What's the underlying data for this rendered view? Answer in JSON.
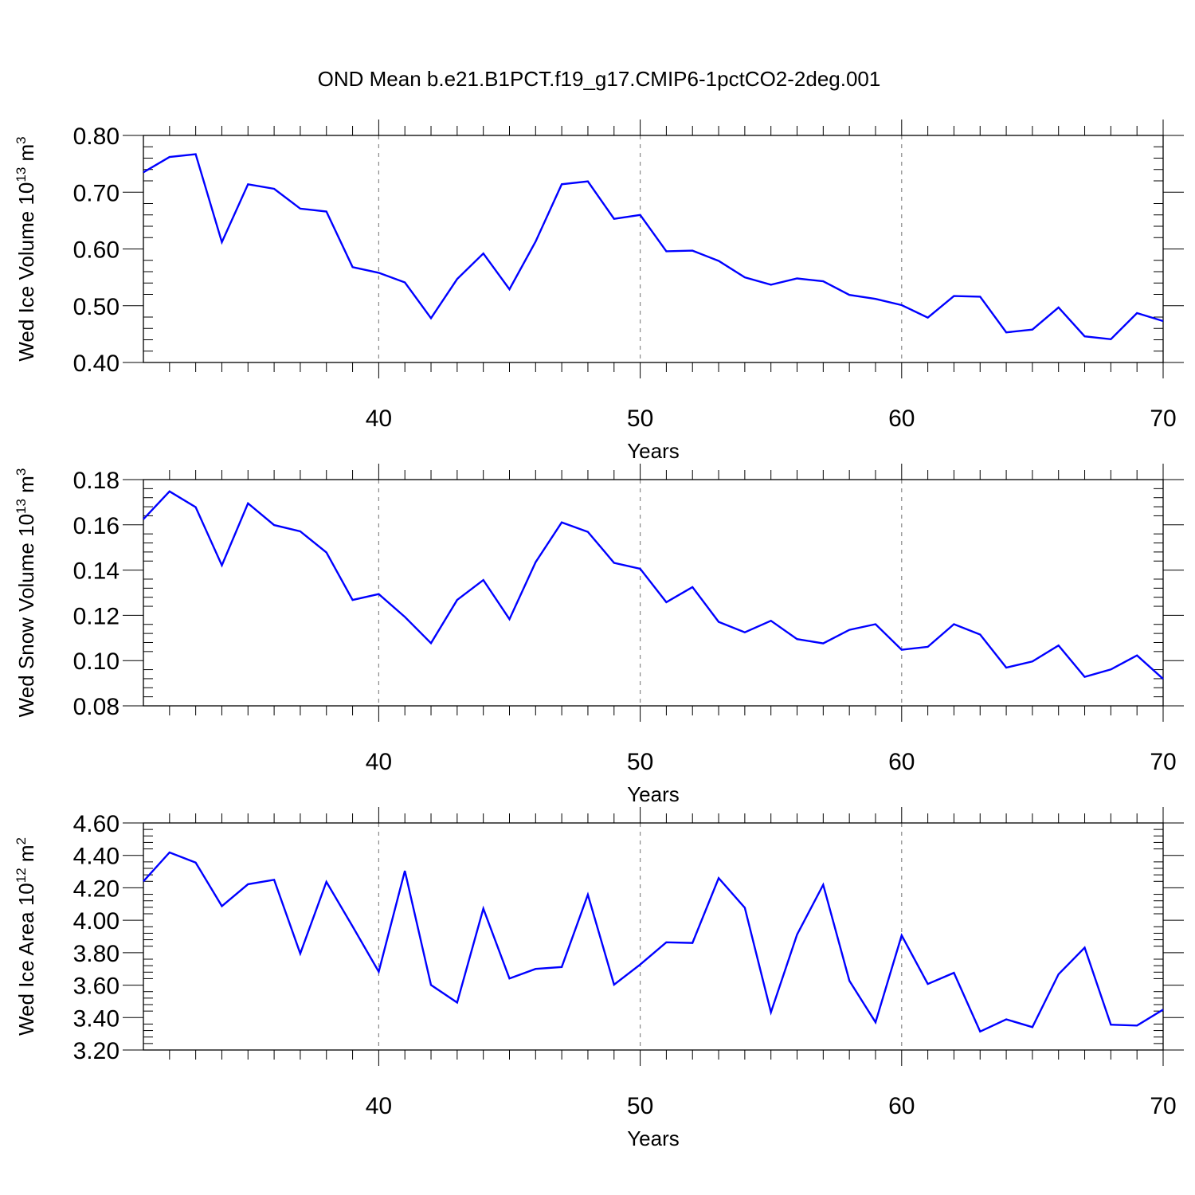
{
  "figure": {
    "title": "OND Mean b.e21.B1PCT.f19_g17.CMIP6-1pctCO2-2deg.001"
  },
  "chart_data": [
    {
      "type": "line",
      "ylabel": "Wed Ice Volume 10",
      "ylabel_exp": "13",
      "ylabel_unit": " m",
      "ylabel_unit_exp": "3",
      "xlabel": "Years",
      "xlim": [
        31,
        70
      ],
      "ylim": [
        0.4,
        0.8
      ],
      "yticks": [
        "0.40",
        "0.50",
        "0.60",
        "0.70",
        "0.80"
      ],
      "xticks": [
        "40",
        "50",
        "60",
        "70"
      ],
      "grid_x": [
        40,
        50,
        60
      ],
      "line_color": "#0000ff",
      "x": [
        31,
        32,
        33,
        34,
        35,
        36,
        37,
        38,
        39,
        40,
        41,
        42,
        43,
        44,
        45,
        46,
        47,
        48,
        49,
        50,
        51,
        52,
        53,
        54,
        55,
        56,
        57,
        58,
        59,
        60,
        61,
        62,
        63,
        64,
        65,
        66,
        67,
        68,
        69,
        70
      ],
      "values": [
        0.735,
        0.762,
        0.767,
        0.612,
        0.714,
        0.706,
        0.671,
        0.666,
        0.568,
        0.558,
        0.541,
        0.478,
        0.547,
        0.592,
        0.529,
        0.613,
        0.714,
        0.719,
        0.653,
        0.66,
        0.596,
        0.597,
        0.579,
        0.55,
        0.537,
        0.548,
        0.543,
        0.519,
        0.512,
        0.501,
        0.479,
        0.517,
        0.516,
        0.453,
        0.458,
        0.497,
        0.446,
        0.441,
        0.487,
        0.473
      ]
    },
    {
      "type": "line",
      "ylabel": "Wed Snow Volume 10",
      "ylabel_exp": "13",
      "ylabel_unit": " m",
      "ylabel_unit_exp": "3",
      "xlabel": "Years",
      "xlim": [
        31,
        70
      ],
      "ylim": [
        0.08,
        0.18
      ],
      "yticks": [
        "0.08",
        "0.10",
        "0.12",
        "0.14",
        "0.16",
        "0.18"
      ],
      "xticks": [
        "40",
        "50",
        "60",
        "70"
      ],
      "grid_x": [
        40,
        50,
        60
      ],
      "line_color": "#0000ff",
      "x": [
        31,
        32,
        33,
        34,
        35,
        36,
        37,
        38,
        39,
        40,
        41,
        42,
        43,
        44,
        45,
        46,
        47,
        48,
        49,
        50,
        51,
        52,
        53,
        54,
        55,
        56,
        57,
        58,
        59,
        60,
        61,
        62,
        63,
        64,
        65,
        66,
        67,
        68,
        69,
        70
      ],
      "values": [
        0.1625,
        0.1748,
        0.1678,
        0.1421,
        0.1695,
        0.1599,
        0.1571,
        0.1478,
        0.1268,
        0.1294,
        0.1193,
        0.1077,
        0.1268,
        0.1356,
        0.1183,
        0.1435,
        0.1611,
        0.1569,
        0.1432,
        0.1406,
        0.1258,
        0.1325,
        0.1171,
        0.1125,
        0.1176,
        0.1095,
        0.1076,
        0.1136,
        0.1161,
        0.1048,
        0.1061,
        0.1161,
        0.1115,
        0.0969,
        0.0996,
        0.1067,
        0.0928,
        0.0961,
        0.1023,
        0.0919
      ]
    },
    {
      "type": "line",
      "ylabel": "Wed Ice Area 10",
      "ylabel_exp": "12",
      "ylabel_unit": " m",
      "ylabel_unit_exp": "2",
      "xlabel": "Years",
      "xlim": [
        31,
        70
      ],
      "ylim": [
        3.2,
        4.6
      ],
      "yticks": [
        "3.20",
        "3.40",
        "3.60",
        "3.80",
        "4.00",
        "4.20",
        "4.40",
        "4.60"
      ],
      "xticks": [
        "40",
        "50",
        "60",
        "70"
      ],
      "grid_x": [
        40,
        50,
        60
      ],
      "line_color": "#0000ff",
      "x": [
        31,
        32,
        33,
        34,
        35,
        36,
        37,
        38,
        39,
        40,
        41,
        42,
        43,
        44,
        45,
        46,
        47,
        48,
        49,
        50,
        51,
        52,
        53,
        54,
        55,
        56,
        57,
        58,
        59,
        60,
        61,
        62,
        63,
        64,
        65,
        66,
        67,
        68,
        69,
        70
      ],
      "values": [
        4.24,
        4.418,
        4.356,
        4.087,
        4.222,
        4.25,
        3.795,
        4.237,
        3.962,
        3.683,
        4.305,
        3.601,
        3.493,
        4.072,
        3.641,
        3.7,
        3.712,
        4.158,
        3.603,
        3.727,
        3.864,
        3.86,
        4.26,
        4.077,
        3.433,
        3.912,
        4.219,
        3.627,
        3.371,
        3.907,
        3.607,
        3.676,
        3.314,
        3.389,
        3.341,
        3.667,
        3.831,
        3.356,
        3.351,
        3.449
      ]
    }
  ]
}
